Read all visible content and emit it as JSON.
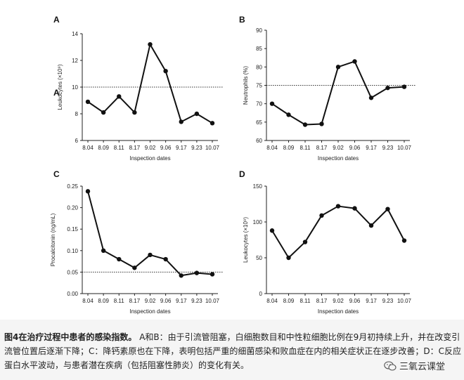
{
  "caption": {
    "lead": "图4在治疗过程中患者的感染指数。",
    "text": "A和B：由于引流管阻塞，白细胞数目和中性粒细胞比例在9月初持续上升，并在改变引流管位置后逐渐下降；C：降钙素原也在下降，表明包括严重的细菌感染和败血症在内的相关症状正在逐步改善；D：C反应蛋白水平波动，与患者潜在疾病（包括阻塞性肺炎）的变化有关。"
  },
  "watermark": {
    "text": "三氧云课堂",
    "icon": "wechat-icon"
  },
  "colors": {
    "line": "#111111",
    "axis": "#222222",
    "reference": "#333333"
  },
  "chart_data": [
    {
      "panel": "A",
      "stray_letter": "A",
      "type": "line",
      "categories": [
        "8.04",
        "8.09",
        "8.11",
        "8.17",
        "9.02",
        "9.06",
        "9.17",
        "9.23",
        "10.07"
      ],
      "values": [
        8.9,
        8.1,
        9.3,
        8.1,
        13.2,
        11.2,
        7.4,
        8.0,
        7.3
      ],
      "xlabel": "Inspection dates",
      "ylabel": "Leukocytes (×10⁹)",
      "ylim": [
        6,
        14
      ],
      "yticks": [
        6,
        8,
        10,
        12,
        14
      ],
      "ytick_labels": [
        "6",
        "8",
        "10",
        "12",
        "14"
      ],
      "reference": 10
    },
    {
      "panel": "B",
      "type": "line",
      "categories": [
        "8.04",
        "8.09",
        "8.11",
        "8.17",
        "9.02",
        "9.06",
        "9.17",
        "9.23",
        "10.07"
      ],
      "values": [
        70,
        67,
        64.3,
        64.5,
        80,
        81.5,
        71.6,
        74.3,
        74.6
      ],
      "xlabel": "Inspection dates",
      "ylabel": "Neutrophils (%)",
      "ylim": [
        60,
        90
      ],
      "yticks": [
        60,
        65,
        70,
        75,
        80,
        85,
        90
      ],
      "ytick_labels": [
        "60",
        "65",
        "70",
        "75",
        "80",
        "85",
        "90"
      ],
      "reference": 75
    },
    {
      "panel": "C",
      "type": "line",
      "categories": [
        "8.04",
        "8.09",
        "8.11",
        "8.17",
        "9.02",
        "9.06",
        "9.17",
        "9.23",
        "10.07"
      ],
      "values": [
        0.238,
        0.1,
        0.08,
        0.06,
        0.09,
        0.08,
        0.042,
        0.048,
        0.045
      ],
      "xlabel": "Inspection dates",
      "ylabel": "Procalcitonin (ng/mL)",
      "ylim": [
        0,
        0.25
      ],
      "yticks": [
        0,
        0.05,
        0.1,
        0.15,
        0.2,
        0.25
      ],
      "ytick_labels": [
        "0.00",
        "0.05",
        "0.10",
        "0.15",
        "0.20",
        "0.25"
      ],
      "reference": 0.05
    },
    {
      "panel": "D",
      "type": "line",
      "categories": [
        "8.04",
        "8.09",
        "8.11",
        "8.17",
        "9.02",
        "9.06",
        "9.17",
        "9.23",
        "10.07"
      ],
      "values": [
        88,
        50,
        72,
        109,
        122,
        119,
        95,
        118,
        74
      ],
      "xlabel": "Inspection dates",
      "ylabel": "Leukocytes (×10⁹)",
      "ylim": [
        0,
        150
      ],
      "yticks": [
        0,
        50,
        100,
        150
      ],
      "ytick_labels": [
        "0",
        "50",
        "100",
        "150"
      ],
      "reference": null
    }
  ]
}
